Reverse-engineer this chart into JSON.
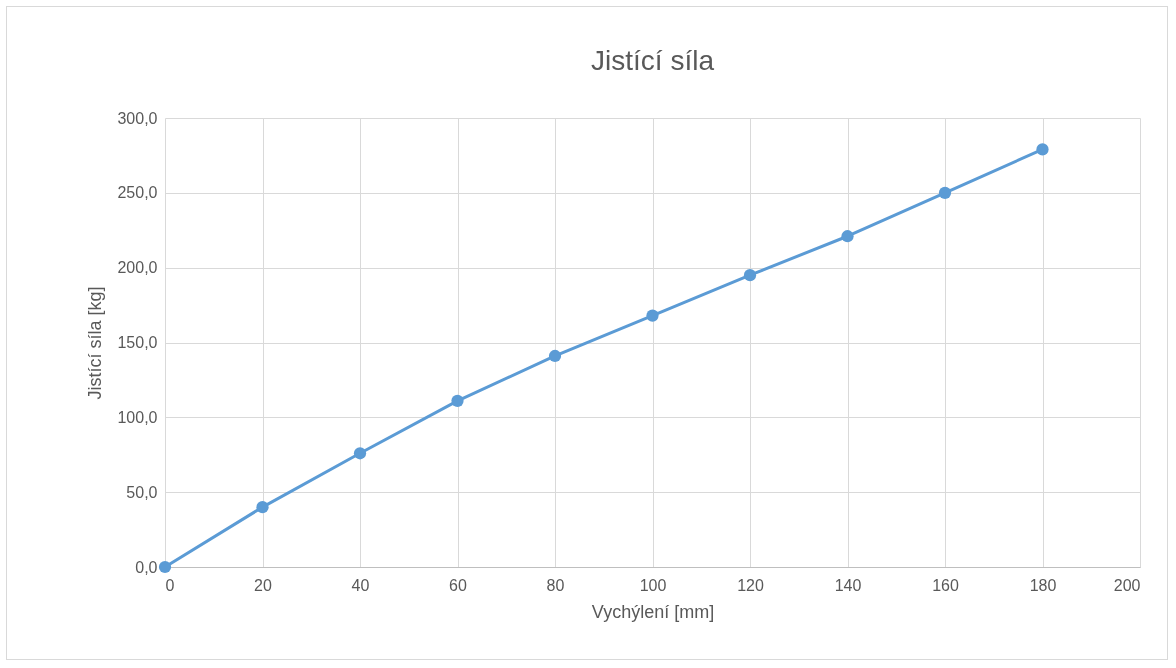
{
  "chart_data": {
    "type": "line",
    "title": "Jistící síla",
    "xlabel": "Vychýlení [mm]",
    "ylabel": "Jistící síla [kg]",
    "x": [
      0,
      20,
      40,
      60,
      80,
      100,
      120,
      140,
      160,
      180
    ],
    "series": [
      {
        "color": "#5b9bd5",
        "values": [
          0,
          40,
          76,
          111,
          141,
          168,
          195,
          221,
          250,
          279
        ]
      }
    ],
    "xlim": [
      0,
      200
    ],
    "xticks": [
      0,
      20,
      40,
      60,
      80,
      100,
      120,
      140,
      160,
      180,
      200
    ],
    "ylim": [
      0,
      300
    ],
    "yticks": [
      {
        "value": 0,
        "label": "0,0"
      },
      {
        "value": 50,
        "label": "50,0"
      },
      {
        "value": 100,
        "label": "100,0"
      },
      {
        "value": 150,
        "label": "150,0"
      },
      {
        "value": 200,
        "label": "200,0"
      },
      {
        "value": 250,
        "label": "250,0"
      },
      {
        "value": 300,
        "label": "300,0"
      }
    ],
    "grid": true,
    "marker": "circle",
    "line_style": "solid",
    "legend": false
  }
}
